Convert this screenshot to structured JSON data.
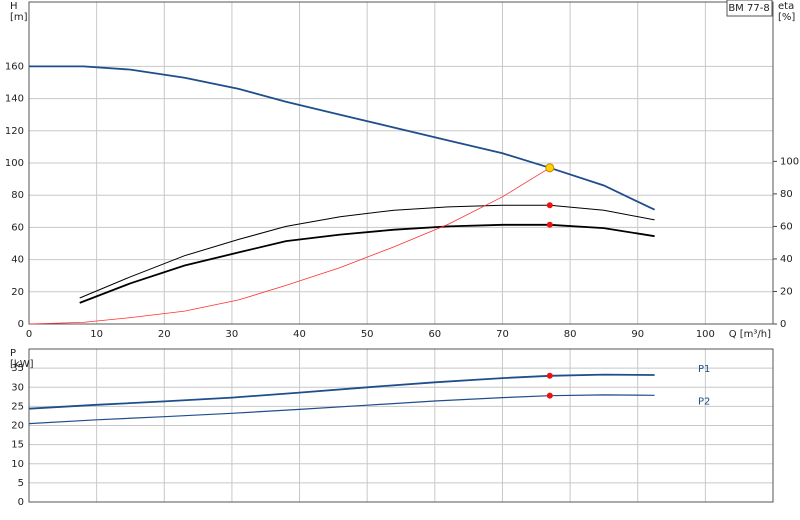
{
  "chart_data": [
    {
      "type": "line",
      "title": "BM 77-8",
      "y_label": [
        "H",
        "[m]"
      ],
      "y2_label": [
        "eta",
        "[%]"
      ],
      "x_label": "Q [m³/h]",
      "xlim": [
        0,
        110
      ],
      "xticks": [
        0,
        10,
        20,
        30,
        40,
        50,
        60,
        70,
        80,
        90,
        100
      ],
      "ylim": [
        0,
        200
      ],
      "yticks": [
        0,
        20,
        40,
        60,
        80,
        100,
        120,
        140,
        160
      ],
      "y2lim": [
        0,
        198
      ],
      "y2ticks": [
        0,
        20,
        40,
        60,
        80,
        100
      ],
      "grid": true,
      "series": [
        {
          "color": "#1f4e8c",
          "line_width": 1.8,
          "x": [
            0,
            8,
            15,
            23,
            31,
            38,
            46,
            54,
            62,
            70,
            77,
            85,
            92.5
          ],
          "values": [
            160,
            160,
            158,
            153,
            146,
            138,
            130,
            122,
            114,
            106,
            97,
            86,
            71
          ]
        },
        {
          "color": "#000000",
          "line_width": 1,
          "axis": "y2",
          "x": [
            7.5,
            15,
            23,
            31,
            38,
            46,
            54,
            62,
            70,
            77,
            85,
            92.5
          ],
          "values": [
            16,
            29,
            42,
            52,
            60,
            66,
            70,
            72,
            73,
            73,
            70,
            64
          ]
        },
        {
          "color": "#000000",
          "line_width": 1.8,
          "axis": "y2",
          "x": [
            7.5,
            15,
            23,
            31,
            38,
            46,
            54,
            62,
            70,
            77,
            85,
            92.5
          ],
          "values": [
            13,
            25,
            36,
            44,
            51,
            55,
            58,
            60,
            61,
            61,
            59,
            54
          ]
        },
        {
          "color": "#ff3030",
          "line_width": 0.8,
          "x": [
            0,
            8,
            15,
            23,
            31,
            38,
            46,
            54,
            62,
            70,
            77
          ],
          "values": [
            0,
            1,
            4,
            8,
            15,
            24,
            35,
            48,
            62,
            79,
            97
          ]
        }
      ],
      "markers": [
        {
          "x": 77,
          "y": 97,
          "color": "#ffd700"
        },
        {
          "x": 77,
          "y": 73,
          "color": "#ee1111",
          "axis": "y2"
        },
        {
          "x": 77,
          "y": 61,
          "color": "#ee1111",
          "axis": "y2"
        }
      ]
    },
    {
      "type": "line",
      "y_label": [
        "P",
        "[kW]"
      ],
      "xlim": [
        0,
        110
      ],
      "ylim": [
        0,
        40
      ],
      "yticks": [
        0,
        5,
        10,
        15,
        20,
        25,
        30,
        35
      ],
      "grid": true,
      "series": [
        {
          "name": "P1",
          "color": "#1f4e8c",
          "line_width": 1.8,
          "x": [
            0,
            10,
            20,
            30,
            40,
            50,
            60,
            70,
            77,
            85,
            92.5
          ],
          "values": [
            24.4,
            25.4,
            26.3,
            27.3,
            28.6,
            30,
            31.3,
            32.4,
            33,
            33.3,
            33.2
          ]
        },
        {
          "name": "P2",
          "color": "#1f4e8c",
          "line_width": 1.2,
          "x": [
            0,
            10,
            20,
            30,
            40,
            50,
            60,
            70,
            77,
            85,
            92.5
          ],
          "values": [
            20.5,
            21.5,
            22.3,
            23.2,
            24.2,
            25.3,
            26.4,
            27.3,
            27.8,
            28,
            27.9
          ]
        }
      ],
      "markers": [
        {
          "x": 77,
          "y": 33,
          "color": "#ee1111"
        },
        {
          "x": 77,
          "y": 27.8,
          "color": "#ee1111"
        }
      ]
    }
  ]
}
